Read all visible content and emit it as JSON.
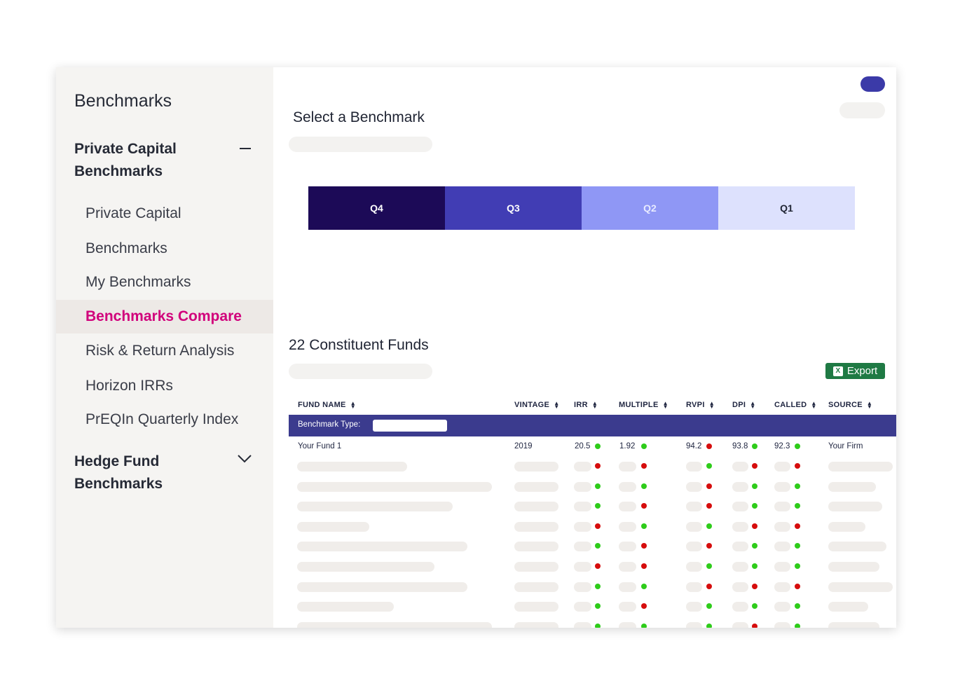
{
  "sidebar": {
    "title": "Benchmarks",
    "group1": "Private Capital Benchmarks",
    "items": [
      {
        "label": "Private Capital"
      },
      {
        "label": "Benchmarks"
      },
      {
        "label": "My Benchmarks"
      },
      {
        "label": "Benchmarks Compare",
        "active": true
      },
      {
        "label": "Risk & Return Analysis"
      },
      {
        "label": "Horizon IRRs"
      },
      {
        "label": "PrEQIn Quarterly Index"
      }
    ],
    "group2": "Hedge Fund Benchmarks"
  },
  "main": {
    "select_heading": "Select a Benchmark",
    "quartiles": [
      {
        "label": "Q4",
        "color": "#1c0a57",
        "text_color": "#ffffff"
      },
      {
        "label": "Q3",
        "color": "#413db4",
        "text_color": "#ffffff"
      },
      {
        "label": "Q2",
        "color": "#8f97f5",
        "text_color": "#e8ebff"
      },
      {
        "label": "Q1",
        "color": "#dde1fd",
        "text_color": "#1f2433"
      }
    ],
    "funds_heading": "22 Constituent Funds",
    "export_label": "Export",
    "export_icon_glyph": "X",
    "benchmark_type_label": "Benchmark Type:"
  },
  "table": {
    "columns": [
      "FUND NAME",
      "VINTAGE",
      "IRR",
      "MULTIPLE",
      "RVPI",
      "DPI",
      "CALLED",
      "SOURCE"
    ],
    "first_row": {
      "fund_name": "Your Fund 1",
      "vintage": "2019",
      "irr": "20.5",
      "multiple": "1.92",
      "rvpi": "94.2",
      "dpi": "93.8",
      "called": "92.3",
      "source": "Your Firm",
      "status": [
        "green",
        "green",
        "red",
        "green",
        "green"
      ]
    },
    "placeholder_rows": [
      {
        "status": [
          "red",
          "red",
          "green",
          "red",
          "red"
        ]
      },
      {
        "status": [
          "green",
          "green",
          "red",
          "green",
          "green"
        ]
      },
      {
        "status": [
          "green",
          "red",
          "red",
          "green",
          "green"
        ]
      },
      {
        "status": [
          "red",
          "green",
          "green",
          "red",
          "red"
        ]
      },
      {
        "status": [
          "green",
          "red",
          "red",
          "green",
          "green"
        ]
      },
      {
        "status": [
          "red",
          "red",
          "green",
          "green",
          "green"
        ]
      },
      {
        "status": [
          "green",
          "green",
          "red",
          "red",
          "red"
        ]
      },
      {
        "status": [
          "green",
          "red",
          "green",
          "green",
          "green"
        ]
      },
      {
        "status": [
          "green",
          "green",
          "green",
          "red",
          "green"
        ]
      }
    ]
  },
  "colors": {
    "accent": "#d1007b",
    "benchmark_bar": "#3b3b8e",
    "toggle": "#3b3aa8",
    "export": "#1f7a44"
  }
}
